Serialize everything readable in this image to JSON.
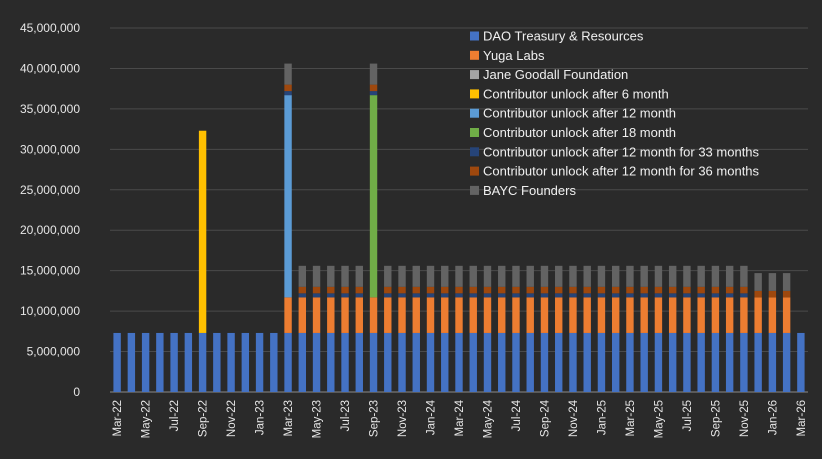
{
  "chart_data": {
    "type": "bar",
    "stacked": true,
    "ylim": [
      0,
      45000000
    ],
    "yticks": [
      0,
      5000000,
      10000000,
      15000000,
      20000000,
      25000000,
      30000000,
      35000000,
      40000000,
      45000000
    ],
    "ytick_labels": [
      "0",
      "5,000,000",
      "10,000,000",
      "15,000,000",
      "20,000,000",
      "25,000,000",
      "30,000,000",
      "35,000,000",
      "40,000,000",
      "45,000,000"
    ],
    "grid": true,
    "legend_position": "top-right",
    "categories": [
      "Mar-22",
      "Apr-22",
      "May-22",
      "Jun-22",
      "Jul-22",
      "Aug-22",
      "Sep-22",
      "Oct-22",
      "Nov-22",
      "Dec-22",
      "Jan-23",
      "Feb-23",
      "Mar-23",
      "Apr-23",
      "May-23",
      "Jun-23",
      "Jul-23",
      "Aug-23",
      "Sep-23",
      "Oct-23",
      "Nov-23",
      "Dec-23",
      "Jan-24",
      "Feb-24",
      "Mar-24",
      "Apr-24",
      "May-24",
      "Jun-24",
      "Jul-24",
      "Aug-24",
      "Sep-24",
      "Oct-24",
      "Nov-24",
      "Dec-24",
      "Jan-25",
      "Feb-25",
      "Mar-25",
      "Apr-25",
      "May-25",
      "Jun-25",
      "Jul-25",
      "Aug-25",
      "Sep-25",
      "Oct-25",
      "Nov-25",
      "Dec-25",
      "Jan-26",
      "Feb-26",
      "Mar-26"
    ],
    "x_tick_labels": [
      "Mar-22",
      "May-22",
      "Jul-22",
      "Sep-22",
      "Nov-22",
      "Jan-23",
      "Mar-23",
      "May-23",
      "Jul-23",
      "Sep-23",
      "Nov-23",
      "Jan-24",
      "Mar-24",
      "May-24",
      "Jul-24",
      "Sep-24",
      "Nov-24",
      "Jan-25",
      "Mar-25",
      "May-25",
      "Jul-25",
      "Sep-25",
      "Nov-25",
      "Jan-26",
      "Mar-26"
    ],
    "series": [
      {
        "name": "DAO Treasury & Resources",
        "color": "#4472c4",
        "values": [
          7300000,
          7300000,
          7300000,
          7300000,
          7300000,
          7300000,
          7300000,
          7300000,
          7300000,
          7300000,
          7300000,
          7300000,
          7300000,
          7300000,
          7300000,
          7300000,
          7300000,
          7300000,
          7300000,
          7300000,
          7300000,
          7300000,
          7300000,
          7300000,
          7300000,
          7300000,
          7300000,
          7300000,
          7300000,
          7300000,
          7300000,
          7300000,
          7300000,
          7300000,
          7300000,
          7300000,
          7300000,
          7300000,
          7300000,
          7300000,
          7300000,
          7300000,
          7300000,
          7300000,
          7300000,
          7300000,
          7300000,
          7300000,
          7300000
        ]
      },
      {
        "name": "Yuga Labs",
        "color": "#ed7d31",
        "values": [
          0,
          0,
          0,
          0,
          0,
          0,
          0,
          0,
          0,
          0,
          0,
          0,
          4400000,
          4400000,
          4400000,
          4400000,
          4400000,
          4400000,
          4400000,
          4400000,
          4400000,
          4400000,
          4400000,
          4400000,
          4400000,
          4400000,
          4400000,
          4400000,
          4400000,
          4400000,
          4400000,
          4400000,
          4400000,
          4400000,
          4400000,
          4400000,
          4400000,
          4400000,
          4400000,
          4400000,
          4400000,
          4400000,
          4400000,
          4400000,
          4400000,
          4400000,
          4400000,
          4400000,
          0
        ]
      },
      {
        "name": "Jane Goodall Foundation",
        "color": "#a5a5a5",
        "values": [
          0,
          0,
          0,
          0,
          0,
          0,
          0,
          0,
          0,
          0,
          0,
          0,
          0,
          0,
          0,
          0,
          0,
          0,
          0,
          0,
          0,
          0,
          0,
          0,
          0,
          0,
          0,
          0,
          0,
          0,
          0,
          0,
          0,
          0,
          0,
          0,
          0,
          0,
          0,
          0,
          0,
          0,
          0,
          0,
          0,
          0,
          0,
          0,
          0
        ]
      },
      {
        "name": "Contributor unlock after 6 month",
        "color": "#ffc000",
        "values": [
          0,
          0,
          0,
          0,
          0,
          0,
          25000000,
          0,
          0,
          0,
          0,
          0,
          0,
          0,
          0,
          0,
          0,
          0,
          0,
          0,
          0,
          0,
          0,
          0,
          0,
          0,
          0,
          0,
          0,
          0,
          0,
          0,
          0,
          0,
          0,
          0,
          0,
          0,
          0,
          0,
          0,
          0,
          0,
          0,
          0,
          0,
          0,
          0,
          0
        ]
      },
      {
        "name": "Contributor unlock after 12 month",
        "color": "#5b9bd5",
        "values": [
          0,
          0,
          0,
          0,
          0,
          0,
          0,
          0,
          0,
          0,
          0,
          0,
          25000000,
          0,
          0,
          0,
          0,
          0,
          0,
          0,
          0,
          0,
          0,
          0,
          0,
          0,
          0,
          0,
          0,
          0,
          0,
          0,
          0,
          0,
          0,
          0,
          0,
          0,
          0,
          0,
          0,
          0,
          0,
          0,
          0,
          0,
          0,
          0,
          0
        ]
      },
      {
        "name": "Contributor unlock after 18 month",
        "color": "#70ad47",
        "values": [
          0,
          0,
          0,
          0,
          0,
          0,
          0,
          0,
          0,
          0,
          0,
          0,
          0,
          0,
          0,
          0,
          0,
          0,
          25000000,
          0,
          0,
          0,
          0,
          0,
          0,
          0,
          0,
          0,
          0,
          0,
          0,
          0,
          0,
          0,
          0,
          0,
          0,
          0,
          0,
          0,
          0,
          0,
          0,
          0,
          0,
          0,
          0,
          0,
          0
        ]
      },
      {
        "name": "Contributor unlock after 12 month for 33 months",
        "color": "#264478",
        "values": [
          0,
          0,
          0,
          0,
          0,
          0,
          0,
          0,
          0,
          0,
          0,
          0,
          500000,
          500000,
          500000,
          500000,
          500000,
          500000,
          500000,
          500000,
          500000,
          500000,
          500000,
          500000,
          500000,
          500000,
          500000,
          500000,
          500000,
          500000,
          500000,
          500000,
          500000,
          500000,
          500000,
          500000,
          500000,
          500000,
          500000,
          500000,
          500000,
          500000,
          500000,
          500000,
          500000,
          0,
          0,
          0,
          0
        ]
      },
      {
        "name": "Contributor unlock after 12 month for 36 months",
        "color": "#9e480e",
        "values": [
          0,
          0,
          0,
          0,
          0,
          0,
          0,
          0,
          0,
          0,
          0,
          0,
          800000,
          800000,
          800000,
          800000,
          800000,
          800000,
          800000,
          800000,
          800000,
          800000,
          800000,
          800000,
          800000,
          800000,
          800000,
          800000,
          800000,
          800000,
          800000,
          800000,
          800000,
          800000,
          800000,
          800000,
          800000,
          800000,
          800000,
          800000,
          800000,
          800000,
          800000,
          800000,
          800000,
          800000,
          800000,
          800000,
          0
        ]
      },
      {
        "name": "BAYC Founders",
        "color": "#636363",
        "values": [
          0,
          0,
          0,
          0,
          0,
          0,
          0,
          0,
          0,
          0,
          0,
          0,
          2600000,
          2600000,
          2600000,
          2600000,
          2600000,
          2600000,
          2600000,
          2600000,
          2600000,
          2600000,
          2600000,
          2600000,
          2600000,
          2600000,
          2600000,
          2600000,
          2600000,
          2600000,
          2600000,
          2600000,
          2600000,
          2600000,
          2600000,
          2600000,
          2600000,
          2600000,
          2600000,
          2600000,
          2600000,
          2600000,
          2600000,
          2600000,
          2600000,
          2200000,
          2200000,
          2200000,
          0
        ]
      }
    ]
  }
}
